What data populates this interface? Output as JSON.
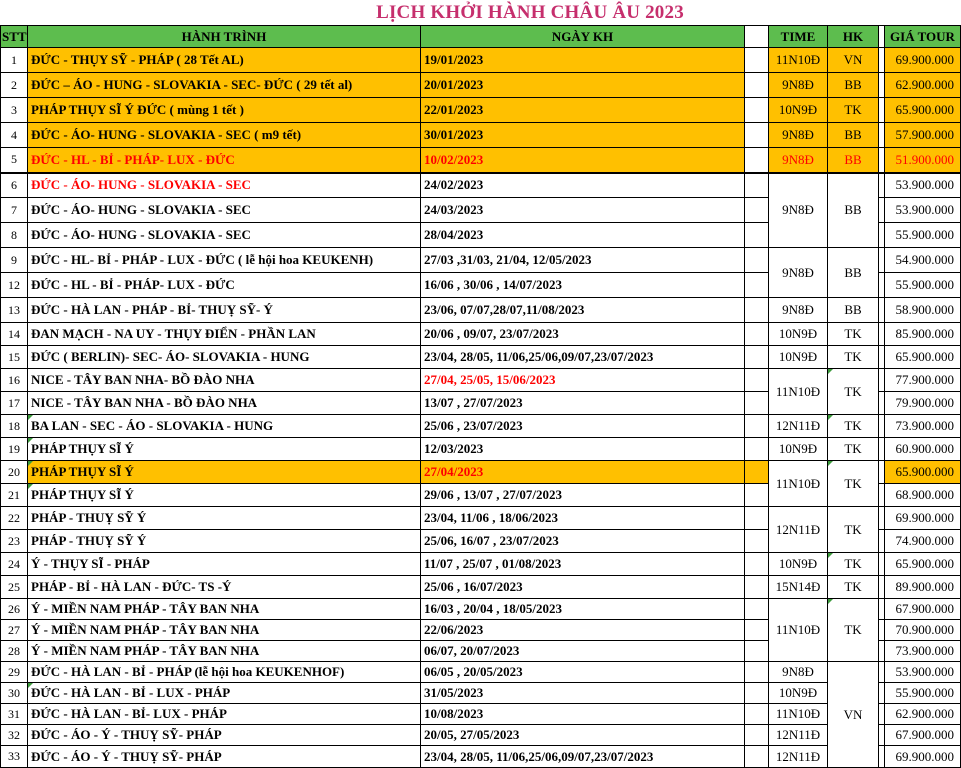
{
  "title": "LỊCH KHỞI HÀNH CHÂU ÂU 2023",
  "columns": {
    "stt": "STT",
    "itinerary": "HÀNH TRÌNH",
    "date": "NGÀY KH",
    "time": "TIME",
    "hk": "HK",
    "price": "GIÁ TOUR"
  },
  "colors": {
    "header_green": "#5dbd4e",
    "row_orange": "#ffc000",
    "alert_red": "#fe0000",
    "title_pink": "#c62f6d",
    "border": "#000000"
  },
  "rows": [
    {
      "stt": "1",
      "itinerary": "ĐỨC - THỤY SỸ - PHÁP ( 28 Tết AL)",
      "dates": "19/01/2023",
      "time": "11N10Đ",
      "airline": "VN",
      "price": "69.900.000",
      "height": 25,
      "orange": "A"
    },
    {
      "stt": "2",
      "itinerary": "ĐỨC – ÁO - HUNG - SLOVAKIA - SEC- ĐỨC ( 29 tết al)",
      "dates": "20/01/2023",
      "time": "9N8Đ",
      "airline": "BB",
      "price": "62.900.000",
      "height": 25,
      "orange": "A"
    },
    {
      "stt": "3",
      "itinerary": "PHÁP  THỤY SĨ Ý ĐỨC  ( mùng 1 tết )",
      "dates": "22/01/2023",
      "time": "10N9Đ",
      "airline": "TK",
      "price": "65.900.000",
      "height": 25,
      "orange": "A"
    },
    {
      "stt": "4",
      "itinerary": "ĐỨC - ÁO- HUNG - SLOVAKIA - SEC ( m9 tết)",
      "dates": "30/01/2023",
      "time": "9N8Đ",
      "airline": "BB",
      "price": "57.900.000",
      "height": 25,
      "orange": "A"
    },
    {
      "stt": "5",
      "itinerary": "ĐỨC - HL - BỈ - PHÁP- LUX - ĐỨC",
      "dates": "10/02/2023",
      "time": "9N8Đ",
      "airline": "BB",
      "price": "51.900.000",
      "height": 25,
      "orange": "A",
      "red": "all",
      "thick_bottom": true
    },
    {
      "stt": "6",
      "itinerary": "ĐỨC - ÁO- HUNG - SLOVAKIA - SEC",
      "dates": "24/02/2023",
      "time": "9N8Đ",
      "time_span": 3,
      "airline": "BB",
      "airline_span": 3,
      "price": "53.900.000",
      "height": 25,
      "red": "it"
    },
    {
      "stt": "7",
      "itinerary": "ĐỨC - ÁO- HUNG - SLOVAKIA - SEC",
      "dates": "24/03/2023",
      "price": "53.900.000",
      "height": 25
    },
    {
      "stt": "8",
      "itinerary": "ĐỨC - ÁO- HUNG - SLOVAKIA - SEC",
      "dates": "28/04/2023",
      "price": "55.900.000",
      "height": 25
    },
    {
      "stt": "9",
      "itinerary": "ĐỨC - HL- BỈ - PHÁP - LUX - ĐỨC ( lễ hội hoa KEUKENH)",
      "dates": "27/03 ,31/03, 21/04, 12/05/2023",
      "time": "9N8Đ",
      "time_span": 2,
      "airline": "BB",
      "airline_span": 2,
      "price": "54.900.000",
      "height": 25
    },
    {
      "stt": "12",
      "itinerary": "ĐỨC - HL - BỈ - PHÁP- LUX - ĐỨC",
      "dates": "16/06 , 30/06 , 14/07/2023",
      "price": "55.900.000",
      "height": 25
    },
    {
      "stt": "13",
      "itinerary": "ĐỨC - HÀ LAN - PHÁP - BỈ- THUỴ SỸ- Ý",
      "dates": "23/06, 07/07,28/07,11/08/2023",
      "time": "9N8Đ",
      "airline": "BB",
      "price": "58.900.000",
      "height": 25
    },
    {
      "stt": "14",
      "itinerary": "ĐAN MẠCH - NA UY - THỤY ĐIỂN - PHẦN LAN",
      "dates": "20/06 , 09/07, 23/07/2023",
      "time": "10N9Đ",
      "airline": "TK",
      "price": "85.900.000",
      "height": 23
    },
    {
      "stt": "15",
      "itinerary": "ĐỨC ( BERLIN)- SEC- ÁO- SLOVAKIA - HUNG",
      "dates": "23/04, 28/05, 11/06,25/06,09/07,23/07/2023",
      "time": "10N9Đ",
      "airline": "TK",
      "price": "65.900.000",
      "height": 23
    },
    {
      "stt": "16",
      "itinerary": "NICE - TÂY BAN NHA- BỒ ĐÀO NHA",
      "dates": "27/04, 25/05, 15/06/2023",
      "time": "11N10Đ",
      "time_span": 2,
      "airline": "TK",
      "airline_span": 2,
      "price": "77.900.000",
      "height": 23,
      "red": "dates",
      "corner_airline": true
    },
    {
      "stt": "17",
      "itinerary": "NICE - TÂY BAN NHA - BỒ ĐÀO NHA",
      "dates": "13/07 , 27/07/2023",
      "price": "79.900.000",
      "height": 23
    },
    {
      "stt": "18",
      "itinerary": "BA LAN - SEC - ÁO - SLOVAKIA - HUNG",
      "dates": "25/06 , 23/07/2023",
      "time": "12N11Đ",
      "airline": "TK",
      "price": "73.900.000",
      "height": 23,
      "corner_itinerary": true,
      "corner_airline": true
    },
    {
      "stt": "19",
      "itinerary": "PHÁP THỤY SĨ Ý",
      "dates": "12/03/2023",
      "time": "10N9Đ",
      "airline": "TK",
      "price": "60.900.000",
      "height": 23,
      "corner_itinerary": true
    },
    {
      "stt": "20",
      "itinerary": "PHÁP THỤY SĨ Ý",
      "dates": "27/04/2023",
      "time": "11N10Đ",
      "time_span": 2,
      "airline": "TK",
      "airline_span": 2,
      "price": "65.900.000",
      "height": 23,
      "orange": "B",
      "red": "dates",
      "corner_itinerary": true,
      "corner_airline": true
    },
    {
      "stt": "21",
      "itinerary": "PHÁP THỤY SĨ Ý",
      "dates": "29/06 , 13/07 , 27/07/2023",
      "price": "68.900.000",
      "height": 23,
      "corner_itinerary": true
    },
    {
      "stt": "22",
      "itinerary": "PHÁP - THUỴ SỸ Ý",
      "dates": "23/04, 11/06 , 18/06/2023",
      "time": "12N11Đ",
      "time_span": 2,
      "airline": "TK",
      "airline_span": 2,
      "price": "69.900.000",
      "height": 23
    },
    {
      "stt": "23",
      "itinerary": "PHÁP - THUỴ SỸ Ý",
      "dates": "25/06, 16/07 , 23/07/2023",
      "price": "74.900.000",
      "height": 23
    },
    {
      "stt": "24",
      "itinerary": "Ý - THỤY SĨ - PHÁP",
      "dates": "11/07 , 25/07 , 01/08/2023",
      "time": "10N9Đ",
      "airline": "TK",
      "price": "65.900.000",
      "height": 23,
      "corner_airline": true
    },
    {
      "stt": "25",
      "itinerary": "PHÁP - BỈ - HÀ LAN - ĐỨC- TS -Ý",
      "dates": "25/06 , 16/07/2023",
      "time": "15N14Đ",
      "airline": "TK",
      "price": "89.900.000",
      "height": 23
    },
    {
      "stt": "26",
      "itinerary": "Ý - MIỀN NAM PHÁP - TÂY BAN NHA",
      "dates": "16/03 , 20/04 , 18/05/2023",
      "time": "11N10Đ",
      "time_span": 3,
      "airline": "TK",
      "airline_span": 3,
      "price": "67.900.000",
      "height": 21,
      "corner_airline": true
    },
    {
      "stt": "27",
      "itinerary": "Ý - MIỀN NAM PHÁP - TÂY BAN NHA",
      "dates": "22/06/2023",
      "price": "70.900.000",
      "height": 21
    },
    {
      "stt": "28",
      "itinerary": "Ý - MIỀN NAM PHÁP - TÂY BAN NHA",
      "dates": "06/07, 20/07/2023",
      "price": "73.900.000",
      "height": 21
    },
    {
      "stt": "29",
      "itinerary": "ĐỨC - HÀ LAN - BỈ - PHÁP (lễ hội hoa KEUKENHOF)",
      "dates": "06/05 , 20/05/2023",
      "time": "9N8Đ",
      "airline": "VN",
      "airline_span": 5,
      "price": "53.900.000",
      "height": 21
    },
    {
      "stt": "30",
      "itinerary": "ĐỨC - HÀ LAN - BỈ - LUX - PHÁP",
      "dates": "31/05/2023",
      "time": "10N9Đ",
      "price": "55.900.000",
      "height": 21,
      "corner_itinerary": true
    },
    {
      "stt": "31",
      "itinerary": "ĐỨC - HÀ LAN - BỈ- LUX - PHÁP",
      "dates": "10/08/2023",
      "time": "11N10Đ",
      "price": "62.900.000",
      "height": 21
    },
    {
      "stt": "32",
      "itinerary": "ĐỨC - ÁO - Ý - THUỴ SỸ- PHÁP",
      "dates": "20/05, 27/05/2023",
      "time": "12N11Đ",
      "price": "67.900.000",
      "height": 21
    },
    {
      "stt": "33",
      "itinerary": "ĐỨC - ÁO - Ý - THUỴ SỸ- PHÁP",
      "dates": "23/04, 28/05, 11/06,25/06,09/07,23/07/2023",
      "time": "12N11Đ",
      "price": "69.900.000",
      "height": 22
    }
  ]
}
